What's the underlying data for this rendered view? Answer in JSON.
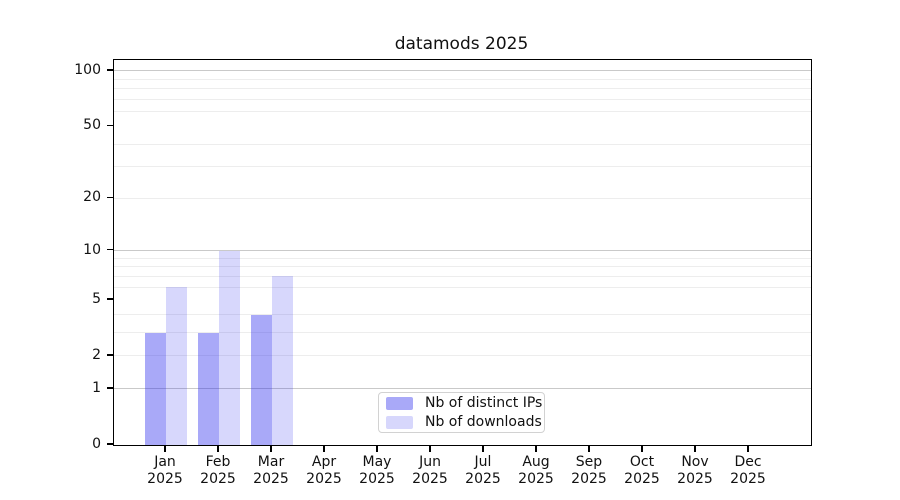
{
  "title": "datamods 2025",
  "chart_data": {
    "type": "bar",
    "title": "datamods 2025",
    "categories": [
      "Jan",
      "Feb",
      "Mar",
      "Apr",
      "May",
      "Jun",
      "Jul",
      "Aug",
      "Sep",
      "Oct",
      "Nov",
      "Dec"
    ],
    "category_year": "2025",
    "series": [
      {
        "name": "Nb of distinct IPs",
        "values": [
          3,
          3,
          4,
          0,
          0,
          0,
          0,
          0,
          0,
          0,
          0,
          0
        ],
        "color_rgba": "rgba(34,34,238,0.39)",
        "color_on_white": "#a9a9f7"
      },
      {
        "name": "Nb of downloads",
        "values": [
          6,
          10,
          7,
          0,
          0,
          0,
          0,
          0,
          0,
          0,
          0,
          0
        ],
        "color_rgba": "rgba(34,34,238,0.18)",
        "color_on_white": "#d8d8fa"
      }
    ],
    "y_scale": "log10(1+v)",
    "y_tick_labels": [
      0,
      1,
      2,
      5,
      10,
      20,
      50,
      100
    ],
    "y_major_gridlines": [
      1,
      10,
      100
    ],
    "y_minor_gridlines": [
      2,
      3,
      4,
      6,
      7,
      8,
      9,
      20,
      30,
      40,
      60,
      70,
      80,
      90
    ],
    "ylim": [
      0,
      115
    ],
    "xlabel": "",
    "ylabel": "",
    "grid": "horizontal",
    "legend_position": "lower center",
    "colors": {
      "major_grid": "#c9c9c9",
      "minor_grid": "#ededed",
      "spine": "#000000",
      "text": "#111111",
      "legend_border": "#d2d2d2",
      "background": "#ffffff"
    }
  }
}
